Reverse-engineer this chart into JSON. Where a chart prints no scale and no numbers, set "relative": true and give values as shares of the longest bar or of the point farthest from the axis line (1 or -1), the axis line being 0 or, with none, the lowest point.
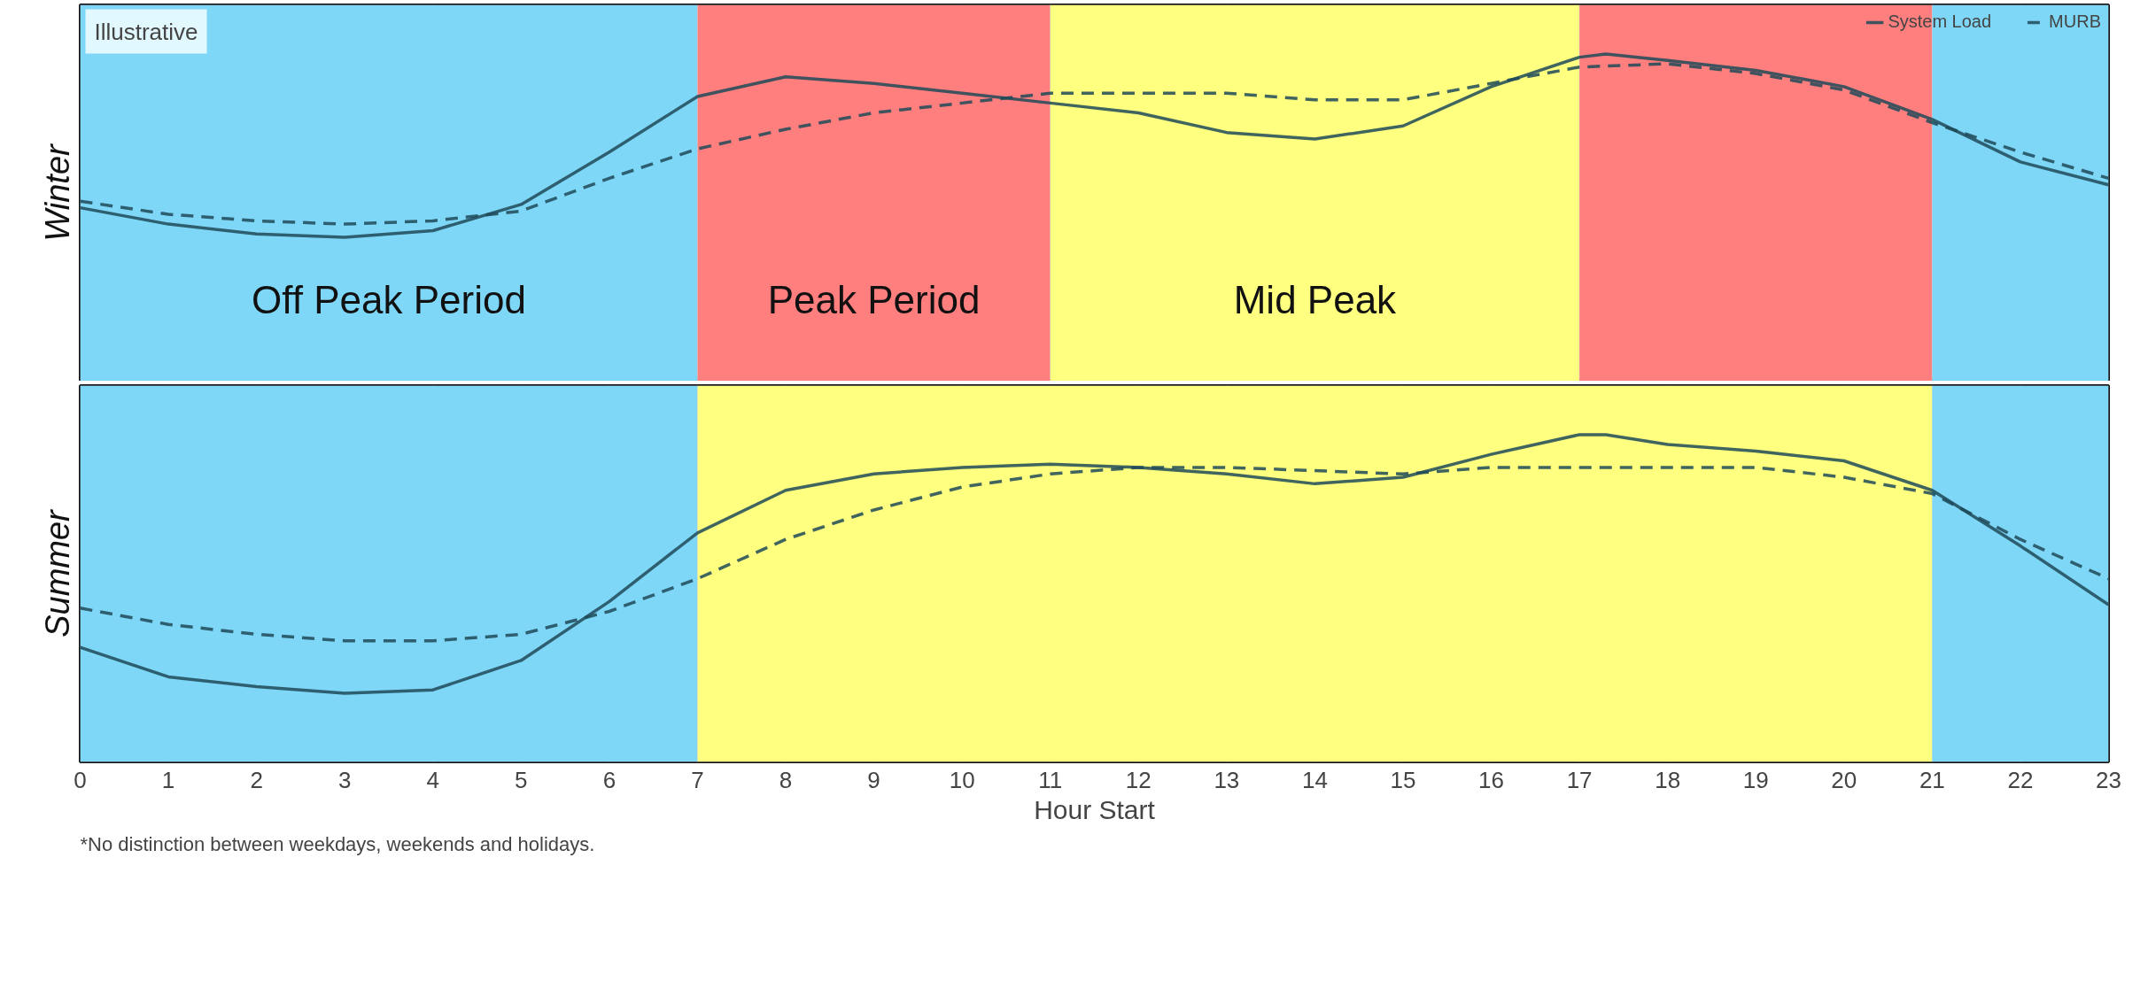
{
  "chart_data": [
    {
      "type": "line",
      "relative": true,
      "ylabel": "Winter",
      "x": [
        0,
        1,
        2,
        3,
        4,
        5,
        6,
        7,
        8,
        9,
        10,
        11,
        12,
        13,
        14,
        15,
        16,
        17,
        17.3,
        18,
        19,
        20,
        21,
        22,
        23
      ],
      "xlim": [
        0,
        23
      ],
      "tick_labels": false,
      "grid": "x",
      "legend": "top right",
      "series": [
        {
          "name": "System Load",
          "color": "#1f4a58",
          "line_style": "solid",
          "values": [
            0.53,
            0.48,
            0.45,
            0.44,
            0.46,
            0.54,
            0.7,
            0.87,
            0.93,
            0.91,
            0.88,
            0.85,
            0.82,
            0.76,
            0.74,
            0.78,
            0.9,
            0.99,
            1,
            0.98,
            0.95,
            0.9,
            0.8,
            0.67,
            0.6
          ]
        },
        {
          "name": "MURB",
          "color": "#1f4a58",
          "line_style": "dashed",
          "x": [
            0,
            1,
            2,
            3,
            4,
            5,
            6,
            7,
            8,
            9,
            10,
            11,
            12,
            13,
            14,
            15,
            16,
            17,
            18,
            19,
            20,
            21,
            22,
            23
          ],
          "values": [
            0.55,
            0.51,
            0.49,
            0.48,
            0.49,
            0.52,
            0.62,
            0.71,
            0.77,
            0.82,
            0.85,
            0.88,
            0.88,
            0.88,
            0.86,
            0.86,
            0.91,
            0.96,
            0.97,
            0.94,
            0.89,
            0.79,
            0.7,
            0.62
          ]
        }
      ],
      "bands": [
        {
          "axis": "x",
          "from": 0,
          "to": 7,
          "label": "Off Peak Period",
          "color": "#7fd7f7"
        },
        {
          "axis": "x",
          "from": 7,
          "to": 11,
          "label": "Peak Period",
          "color": "#ff7f7f"
        },
        {
          "axis": "x",
          "from": 11,
          "to": 17,
          "label": "Mid Peak",
          "color": "#ffff80"
        },
        {
          "axis": "x",
          "from": 17,
          "to": 21,
          "label": null,
          "color": "#ff7f7f"
        },
        {
          "axis": "x",
          "from": 21,
          "to": 23,
          "label": null,
          "color": "#7fd7f7"
        }
      ],
      "annotations": [
        "Illustrative"
      ]
    },
    {
      "type": "line",
      "relative": true,
      "ylabel": "Summer",
      "xlabel": "Hour Start",
      "x": [
        0,
        1,
        2,
        3,
        4,
        5,
        6,
        7,
        8,
        9,
        10,
        11,
        12,
        13,
        14,
        15,
        16,
        17,
        17.3,
        18,
        19,
        20,
        21,
        22,
        23
      ],
      "xlim": [
        0,
        23
      ],
      "xticks": [
        0,
        1,
        2,
        3,
        4,
        5,
        6,
        7,
        8,
        9,
        10,
        11,
        12,
        13,
        14,
        15,
        16,
        17,
        18,
        19,
        20,
        21,
        22,
        23
      ],
      "tick_labels": "x",
      "grid": "x",
      "series": [
        {
          "color": "#1f4a58",
          "line_style": "solid",
          "values": [
            0.35,
            0.26,
            0.23,
            0.21,
            0.22,
            0.31,
            0.49,
            0.7,
            0.83,
            0.88,
            0.9,
            0.91,
            0.9,
            0.88,
            0.85,
            0.87,
            0.94,
            1.0,
            1,
            0.97,
            0.95,
            0.92,
            0.83,
            0.66,
            0.48
          ]
        },
        {
          "color": "#1f4a58",
          "line_style": "dashed",
          "x": [
            0,
            1,
            2,
            3,
            4,
            5,
            6,
            7,
            8,
            9,
            10,
            11,
            12,
            13,
            14,
            15,
            16,
            17,
            18,
            19,
            20,
            21,
            22,
            23
          ],
          "values": [
            0.47,
            0.42,
            0.39,
            0.37,
            0.37,
            0.39,
            0.46,
            0.56,
            0.68,
            0.77,
            0.84,
            0.88,
            0.9,
            0.9,
            0.89,
            0.88,
            0.9,
            0.9,
            0.9,
            0.9,
            0.87,
            0.82,
            0.68,
            0.56
          ]
        }
      ],
      "bands": [
        {
          "axis": "x",
          "from": 0,
          "to": 7,
          "label": null,
          "color": "#7fd7f7"
        },
        {
          "axis": "x",
          "from": 7,
          "to": 21,
          "label": null,
          "color": "#ffff80"
        },
        {
          "axis": "x",
          "from": 21,
          "to": 23,
          "label": null,
          "color": "#7fd7f7"
        }
      ],
      "annotations": [
        "*No distinction between weekdays, weekends and holidays."
      ]
    }
  ]
}
